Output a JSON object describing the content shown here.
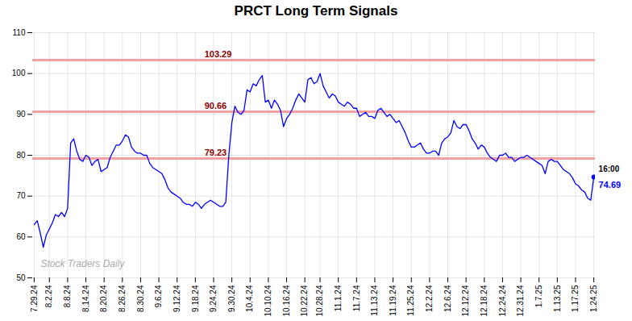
{
  "chart_data": {
    "type": "line",
    "title": "PRCT Long Term Signals",
    "categories": [
      "7.29.24",
      null,
      null,
      null,
      null,
      "8.2.24",
      null,
      null,
      null,
      null,
      null,
      "8.8.24",
      null,
      null,
      null,
      null,
      null,
      "8.14.24",
      null,
      null,
      null,
      null,
      null,
      "8.20.24",
      null,
      null,
      null,
      null,
      null,
      "8.26.24",
      null,
      null,
      null,
      null,
      null,
      "8.30.24",
      null,
      null,
      null,
      null,
      null,
      "9.6.24",
      null,
      null,
      null,
      null,
      null,
      "9.12.24",
      null,
      null,
      null,
      null,
      null,
      "9.18.24",
      null,
      null,
      null,
      null,
      null,
      "9.24.24",
      null,
      null,
      null,
      null,
      null,
      "9.30.24",
      null,
      null,
      null,
      null,
      null,
      "10.4.24",
      null,
      null,
      null,
      null,
      null,
      "10.10.24",
      null,
      null,
      null,
      null,
      null,
      "10.16.24",
      null,
      null,
      null,
      null,
      null,
      "10.22.24",
      null,
      null,
      null,
      null,
      "10.28.24",
      null,
      null,
      null,
      null,
      null,
      "11.1.24",
      null,
      null,
      null,
      null,
      null,
      "11.7.24",
      null,
      null,
      null,
      null,
      null,
      "11.13.24",
      null,
      null,
      null,
      null,
      null,
      "11.19.24",
      null,
      null,
      null,
      null,
      null,
      "11.25.24",
      null,
      null,
      null,
      null,
      null,
      "12.2.24",
      null,
      null,
      null,
      null,
      null,
      "12.6.24",
      null,
      null,
      null,
      null,
      null,
      "12.12.24",
      null,
      null,
      null,
      null,
      null,
      "12.18.24",
      null,
      null,
      null,
      null,
      null,
      "12.24.24",
      null,
      null,
      null,
      null,
      null,
      "12.31.24",
      null,
      null,
      null,
      null,
      null,
      "1.7.25",
      null,
      null,
      null,
      null,
      null,
      "1.13.25",
      null,
      null,
      null,
      null,
      null,
      "1.17.25",
      null,
      null,
      null,
      null,
      null,
      "1.24.25"
    ],
    "series": [
      {
        "name": "PRCT",
        "color": "blue",
        "values": [
          63.0,
          64.0,
          61.0,
          57.5,
          60.5,
          62.0,
          63.5,
          65.5,
          65.0,
          66.0,
          65.0,
          67.0,
          83.0,
          84.0,
          81.0,
          79.0,
          78.5,
          80.0,
          79.5,
          77.5,
          78.5,
          79.0,
          76.0,
          76.5,
          77.0,
          79.5,
          81.0,
          82.5,
          82.5,
          83.5,
          85.0,
          84.5,
          82.0,
          81.0,
          80.5,
          80.5,
          80.0,
          80.0,
          78.0,
          77.0,
          76.5,
          76.0,
          75.5,
          74.0,
          72.0,
          71.0,
          70.5,
          70.0,
          69.5,
          68.5,
          68.0,
          68.0,
          67.5,
          68.5,
          68.0,
          67.0,
          68.0,
          68.5,
          69.0,
          68.5,
          68.0,
          67.5,
          67.5,
          68.5,
          80.0,
          88.0,
          92.0,
          90.5,
          90.0,
          91.0,
          96.0,
          95.5,
          97.5,
          97.0,
          98.5,
          99.5,
          93.0,
          93.5,
          91.5,
          93.5,
          92.5,
          91.0,
          87.0,
          89.0,
          90.0,
          91.5,
          93.5,
          95.0,
          94.0,
          93.0,
          98.5,
          99.0,
          97.5,
          98.0,
          100.0,
          97.0,
          95.5,
          94.0,
          95.0,
          94.5,
          93.0,
          92.5,
          92.0,
          93.0,
          92.5,
          91.5,
          91.5,
          89.5,
          90.0,
          90.5,
          89.5,
          89.5,
          89.0,
          91.0,
          91.5,
          90.5,
          89.5,
          90.0,
          89.0,
          88.0,
          88.5,
          87.0,
          85.5,
          83.5,
          82.0,
          82.0,
          82.5,
          83.0,
          81.5,
          80.5,
          80.5,
          81.0,
          81.0,
          80.0,
          83.0,
          84.0,
          84.5,
          85.5,
          88.5,
          87.0,
          86.5,
          87.5,
          87.5,
          86.0,
          84.0,
          83.0,
          81.5,
          82.5,
          82.0,
          80.5,
          79.5,
          79.0,
          78.5,
          80.0,
          80.0,
          80.5,
          79.5,
          79.5,
          78.5,
          79.0,
          79.5,
          79.5,
          80.0,
          79.5,
          79.0,
          78.5,
          78.0,
          77.5,
          75.5,
          78.5,
          79.0,
          78.5,
          78.5,
          77.5,
          76.5,
          76.0,
          75.5,
          74.5,
          73.0,
          72.5,
          71.5,
          71.0,
          69.5,
          69.0,
          74.69
        ]
      }
    ],
    "hlines": {
      "values": [
        103.29,
        90.66,
        79.23
      ],
      "color": "#f4a0a0",
      "label_color": "darkred"
    },
    "annotations": {
      "watermark": "Stock Traders Daily",
      "last_time": "16:00",
      "last_value": "74.69",
      "last_time_color": "black",
      "last_value_color": "blue"
    },
    "ylim": [
      50,
      110
    ],
    "yticks": [
      50,
      60,
      70,
      80,
      90,
      100,
      110
    ],
    "grid": true
  }
}
